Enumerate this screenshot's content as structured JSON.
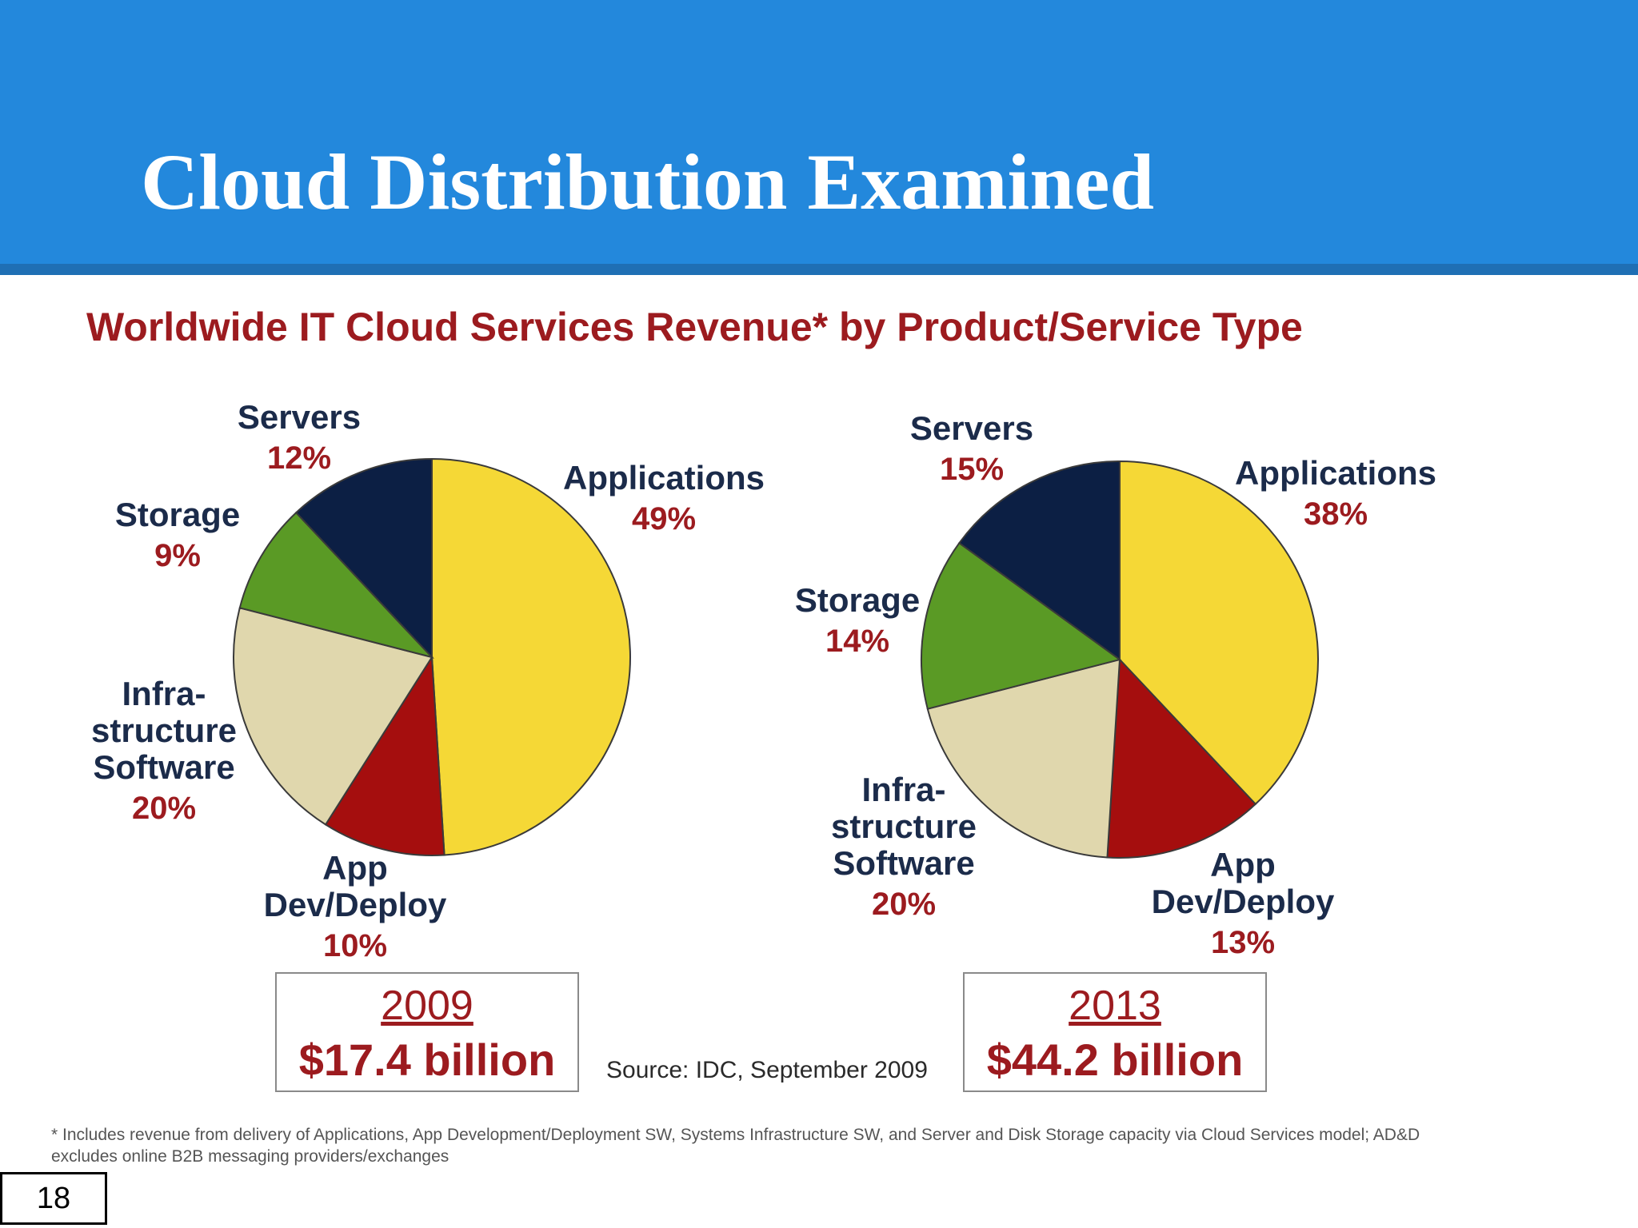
{
  "slide": {
    "title": "Cloud Distribution Examined",
    "page_number": "18",
    "source": "Source: IDC, September 2009",
    "footnote": "* Includes revenue from delivery of Applications, App Development/Deployment SW, Systems Infrastructure SW, and Server and Disk Storage capacity via Cloud Services model; AD&D excludes online B2B messaging providers/exchanges"
  },
  "colors": {
    "header": "#2388dc",
    "title_red": "#9c1b1f",
    "applications": "#f5d836",
    "app_dev_deploy": "#a50e0e",
    "infrastructure_software": "#e0d7ad",
    "storage": "#5a9a25",
    "servers": "#0c1f44"
  },
  "chart_data": {
    "type": "pie",
    "title": "Worldwide IT Cloud Services Revenue* by Product/Service Type",
    "legend": "none",
    "charts": [
      {
        "year": "2009",
        "total": "$17.4 billion",
        "slices": [
          {
            "key": "applications",
            "label": [
              "Applications"
            ],
            "value": 49,
            "pct": "49%"
          },
          {
            "key": "app_dev_deploy",
            "label": [
              "App",
              "Dev/Deploy"
            ],
            "value": 10,
            "pct": "10%"
          },
          {
            "key": "infrastructure_software",
            "label": [
              "Infra-",
              "structure",
              "Software"
            ],
            "value": 20,
            "pct": "20%"
          },
          {
            "key": "storage",
            "label": [
              "Storage"
            ],
            "value": 9,
            "pct": "9%"
          },
          {
            "key": "servers",
            "label": [
              "Servers"
            ],
            "value": 12,
            "pct": "12%"
          }
        ]
      },
      {
        "year": "2013",
        "total": "$44.2 billion",
        "slices": [
          {
            "key": "applications",
            "label": [
              "Applications"
            ],
            "value": 38,
            "pct": "38%"
          },
          {
            "key": "app_dev_deploy",
            "label": [
              "App",
              "Dev/Deploy"
            ],
            "value": 13,
            "pct": "13%"
          },
          {
            "key": "infrastructure_software",
            "label": [
              "Infra-",
              "structure",
              "Software"
            ],
            "value": 20,
            "pct": "20%"
          },
          {
            "key": "storage",
            "label": [
              "Storage"
            ],
            "value": 14,
            "pct": "14%"
          },
          {
            "key": "servers",
            "label": [
              "Servers"
            ],
            "value": 15,
            "pct": "15%"
          }
        ]
      }
    ]
  }
}
